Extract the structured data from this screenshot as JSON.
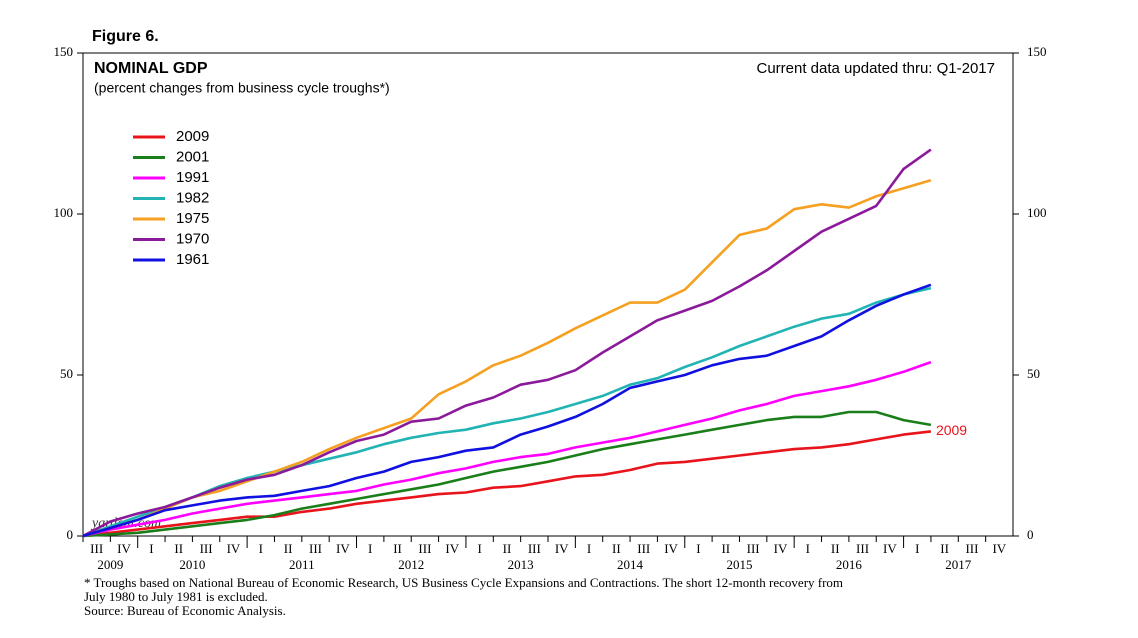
{
  "chart_data": {
    "type": "line",
    "figure_label": "Figure 6.",
    "title": "NOMINAL GDP",
    "subtitle": "(percent changes from business cycle troughs*)",
    "update_note": "Current data updated thru: Q1-2017",
    "watermark": "yardeni.com",
    "end_label": "2009",
    "quarter_labels": [
      "III",
      "IV",
      "I",
      "II",
      "III",
      "IV",
      "I",
      "II",
      "III",
      "IV",
      "I",
      "II",
      "III",
      "IV",
      "I",
      "II",
      "III",
      "IV",
      "I",
      "II",
      "III",
      "IV",
      "I",
      "II",
      "III",
      "IV",
      "I",
      "II",
      "III",
      "IV",
      "I",
      "II",
      "III",
      "IV"
    ],
    "years": [
      "2009",
      "2010",
      "2011",
      "2012",
      "2013",
      "2014",
      "2015",
      "2016",
      "2017"
    ],
    "ylim": [
      0,
      150
    ],
    "yticks": [
      0,
      50,
      100,
      150
    ],
    "series": [
      {
        "name": "2009",
        "color": "#e8141c",
        "values": [
          0,
          1,
          2,
          3,
          4,
          5,
          6,
          6,
          7.5,
          8.5,
          10,
          11,
          12,
          13,
          13.5,
          15,
          15.5,
          17,
          18.5,
          19,
          20.5,
          22.5,
          23,
          24,
          25,
          26,
          27,
          27.5,
          28.5,
          30,
          31.5,
          32.5
        ]
      },
      {
        "name": "2001",
        "color": "#1a7f1a",
        "values": [
          0,
          0.5,
          1,
          2,
          3,
          4,
          5,
          6.5,
          8.5,
          10,
          11.5,
          13,
          14.5,
          16,
          18,
          20,
          21.5,
          23,
          25,
          27,
          28.5,
          30,
          31.5,
          33,
          34.5,
          36,
          37,
          37,
          38.5,
          38.5,
          36,
          34.5
        ]
      },
      {
        "name": "1991",
        "color": "#ff00ff",
        "values": [
          0,
          2,
          3.5,
          5,
          7,
          8.5,
          10,
          11,
          12,
          13,
          14,
          16,
          17.5,
          19.5,
          21,
          23,
          24.5,
          25.5,
          27.5,
          29,
          30.5,
          32.5,
          34.5,
          36.5,
          39,
          41,
          43.5,
          45,
          46.5,
          48.5,
          51,
          54
        ]
      },
      {
        "name": "1982",
        "color": "#22b4b4",
        "values": [
          0,
          3,
          6,
          9,
          12,
          15.5,
          18,
          20,
          22,
          24,
          26,
          28.5,
          30.5,
          32,
          33,
          35,
          36.5,
          38.5,
          41,
          43.5,
          47,
          49,
          52.5,
          55.5,
          59,
          62,
          65,
          67.5,
          69,
          72.5,
          75,
          77
        ]
      },
      {
        "name": "1975",
        "color": "#f5a020",
        "values": [
          0,
          2.5,
          5,
          8.5,
          12,
          14,
          17,
          20,
          23,
          27,
          30.5,
          33.5,
          36.5,
          44,
          48,
          53,
          56,
          60,
          64.5,
          68.5,
          72.5,
          72.5,
          76.5,
          85,
          93.5,
          95.5,
          101.5,
          103,
          102,
          105.5,
          108,
          110.5
        ]
      },
      {
        "name": "1970",
        "color": "#8b1a9b",
        "values": [
          0,
          4.5,
          7,
          9,
          12,
          15,
          17.5,
          19,
          22,
          26,
          29.5,
          31.5,
          35.5,
          36.5,
          40.5,
          43,
          47,
          48.5,
          51.5,
          57,
          62,
          67,
          70,
          73,
          77.5,
          82.5,
          88.5,
          94.5,
          98.5,
          102.5,
          114,
          120
        ]
      },
      {
        "name": "1961",
        "color": "#1010e0",
        "values": [
          0,
          2.5,
          5,
          8,
          9.5,
          11,
          12,
          12.5,
          14,
          15.5,
          18,
          20,
          23,
          24.5,
          26.5,
          27.5,
          31.5,
          34,
          37,
          41,
          46,
          48,
          50,
          53,
          55,
          56,
          59,
          62,
          67,
          71.5,
          75,
          78
        ]
      }
    ],
    "footnote": [
      "*  Troughs based on National Bureau of Economic Research, US Business Cycle Expansions and Contractions. The short 12-month recovery from",
      "July 1980 to July 1981 is excluded."
    ],
    "source": "Source: Bureau of Economic Analysis."
  }
}
